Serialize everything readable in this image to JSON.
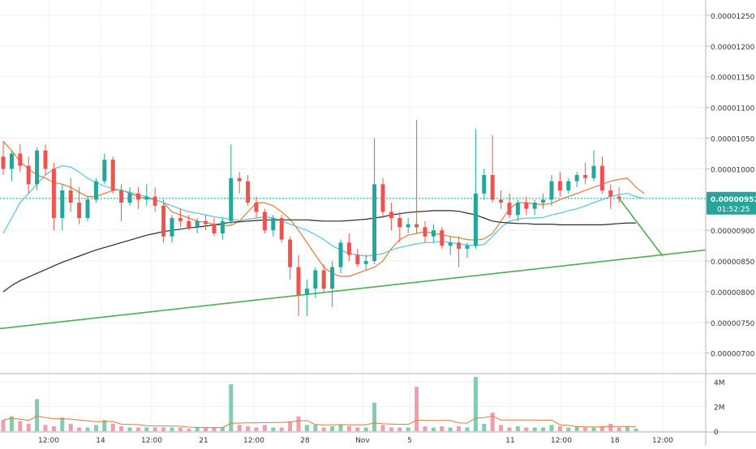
{
  "chart_data": [
    {
      "type": "candlestick",
      "panel": "price",
      "y_range": [
        6.68e-06,
        1.275e-05
      ],
      "y_ticks": [
        "0.00001250",
        "0.00001200",
        "0.00001150",
        "0.00001100",
        "0.00001050",
        "0.00001000",
        "0.00000950",
        "0.00000900",
        "0.00000850",
        "0.00000800",
        "0.00000750",
        "0.00000700"
      ],
      "x_ticks": [
        "12:00",
        "14",
        "12:00",
        "21",
        "12:00",
        "28",
        "Nov",
        "5",
        "11",
        "12:00",
        "18",
        "12:00"
      ],
      "last_price": {
        "value_label": "0.00000952",
        "countdown_label": "01:52:25",
        "value": 9.52e-06
      },
      "candles": [
        {
          "o": 1020,
          "h": 1045,
          "l": 990,
          "c": 1000
        },
        {
          "o": 1000,
          "h": 1030,
          "l": 980,
          "c": 1025
        },
        {
          "o": 1025,
          "h": 1040,
          "l": 995,
          "c": 1005
        },
        {
          "o": 1005,
          "h": 1020,
          "l": 960,
          "c": 975
        },
        {
          "o": 975,
          "h": 1035,
          "l": 965,
          "c": 1030
        },
        {
          "o": 1030,
          "h": 1040,
          "l": 990,
          "c": 1000
        },
        {
          "o": 1000,
          "h": 1010,
          "l": 900,
          "c": 920
        },
        {
          "o": 920,
          "h": 975,
          "l": 900,
          "c": 965
        },
        {
          "o": 965,
          "h": 985,
          "l": 930,
          "c": 945
        },
        {
          "o": 945,
          "h": 970,
          "l": 910,
          "c": 920
        },
        {
          "o": 920,
          "h": 955,
          "l": 915,
          "c": 950
        },
        {
          "o": 950,
          "h": 985,
          "l": 945,
          "c": 980
        },
        {
          "o": 980,
          "h": 1025,
          "l": 975,
          "c": 1015
        },
        {
          "o": 1015,
          "h": 1020,
          "l": 960,
          "c": 965
        },
        {
          "o": 965,
          "h": 975,
          "l": 915,
          "c": 945
        },
        {
          "o": 945,
          "h": 970,
          "l": 940,
          "c": 960
        },
        {
          "o": 960,
          "h": 970,
          "l": 935,
          "c": 950
        },
        {
          "o": 950,
          "h": 975,
          "l": 940,
          "c": 955
        },
        {
          "o": 955,
          "h": 970,
          "l": 930,
          "c": 940
        },
        {
          "o": 940,
          "h": 950,
          "l": 880,
          "c": 890
        },
        {
          "o": 890,
          "h": 925,
          "l": 880,
          "c": 920
        },
        {
          "o": 920,
          "h": 935,
          "l": 905,
          "c": 915
        },
        {
          "o": 915,
          "h": 925,
          "l": 900,
          "c": 905
        },
        {
          "o": 905,
          "h": 920,
          "l": 895,
          "c": 915
        },
        {
          "o": 915,
          "h": 925,
          "l": 900,
          "c": 910
        },
        {
          "o": 910,
          "h": 920,
          "l": 890,
          "c": 895
        },
        {
          "o": 895,
          "h": 920,
          "l": 885,
          "c": 915
        },
        {
          "o": 915,
          "h": 1040,
          "l": 910,
          "c": 985
        },
        {
          "o": 985,
          "h": 995,
          "l": 960,
          "c": 980
        },
        {
          "o": 980,
          "h": 990,
          "l": 940,
          "c": 945
        },
        {
          "o": 945,
          "h": 955,
          "l": 920,
          "c": 930
        },
        {
          "o": 930,
          "h": 935,
          "l": 895,
          "c": 900
        },
        {
          "o": 900,
          "h": 925,
          "l": 890,
          "c": 920
        },
        {
          "o": 920,
          "h": 925,
          "l": 880,
          "c": 885
        },
        {
          "o": 885,
          "h": 890,
          "l": 820,
          "c": 840
        },
        {
          "o": 840,
          "h": 860,
          "l": 760,
          "c": 795
        },
        {
          "o": 795,
          "h": 820,
          "l": 760,
          "c": 805
        },
        {
          "o": 805,
          "h": 840,
          "l": 790,
          "c": 835
        },
        {
          "o": 835,
          "h": 845,
          "l": 800,
          "c": 805
        },
        {
          "o": 805,
          "h": 850,
          "l": 775,
          "c": 840
        },
        {
          "o": 840,
          "h": 885,
          "l": 830,
          "c": 880
        },
        {
          "o": 880,
          "h": 895,
          "l": 850,
          "c": 860
        },
        {
          "o": 860,
          "h": 870,
          "l": 840,
          "c": 845
        },
        {
          "o": 845,
          "h": 860,
          "l": 835,
          "c": 850
        },
        {
          "o": 850,
          "h": 1050,
          "l": 845,
          "c": 975
        },
        {
          "o": 975,
          "h": 985,
          "l": 920,
          "c": 930
        },
        {
          "o": 930,
          "h": 945,
          "l": 900,
          "c": 920
        },
        {
          "o": 920,
          "h": 930,
          "l": 880,
          "c": 905
        },
        {
          "o": 905,
          "h": 920,
          "l": 895,
          "c": 910
        },
        {
          "o": 910,
          "h": 1080,
          "l": 895,
          "c": 905
        },
        {
          "o": 905,
          "h": 915,
          "l": 880,
          "c": 890
        },
        {
          "o": 890,
          "h": 910,
          "l": 880,
          "c": 900
        },
        {
          "o": 900,
          "h": 905,
          "l": 870,
          "c": 875
        },
        {
          "o": 875,
          "h": 890,
          "l": 860,
          "c": 880
        },
        {
          "o": 880,
          "h": 890,
          "l": 840,
          "c": 870
        },
        {
          "o": 870,
          "h": 880,
          "l": 855,
          "c": 875
        },
        {
          "o": 875,
          "h": 1065,
          "l": 870,
          "c": 960
        },
        {
          "o": 960,
          "h": 1000,
          "l": 950,
          "c": 990
        },
        {
          "o": 990,
          "h": 1055,
          "l": 945,
          "c": 950
        },
        {
          "o": 950,
          "h": 965,
          "l": 935,
          "c": 945
        },
        {
          "o": 945,
          "h": 960,
          "l": 920,
          "c": 925
        },
        {
          "o": 925,
          "h": 950,
          "l": 915,
          "c": 945
        },
        {
          "o": 945,
          "h": 955,
          "l": 925,
          "c": 935
        },
        {
          "o": 935,
          "h": 950,
          "l": 925,
          "c": 945
        },
        {
          "o": 945,
          "h": 960,
          "l": 935,
          "c": 950
        },
        {
          "o": 950,
          "h": 990,
          "l": 940,
          "c": 980
        },
        {
          "o": 980,
          "h": 995,
          "l": 955,
          "c": 965
        },
        {
          "o": 965,
          "h": 985,
          "l": 960,
          "c": 980
        },
        {
          "o": 980,
          "h": 995,
          "l": 970,
          "c": 990
        },
        {
          "o": 990,
          "h": 1010,
          "l": 975,
          "c": 985
        },
        {
          "o": 985,
          "h": 1030,
          "l": 980,
          "c": 1005
        },
        {
          "o": 1005,
          "h": 1020,
          "l": 960,
          "c": 965
        },
        {
          "o": 965,
          "h": 975,
          "l": 935,
          "c": 955
        },
        {
          "o": 955,
          "h": 970,
          "l": 945,
          "c": 952
        }
      ],
      "overlay_lines": [
        {
          "color": "#e07b39",
          "points": [
            1045,
            1030,
            1012,
            1000,
            990,
            985,
            978,
            975,
            970,
            962,
            955,
            955,
            960,
            965,
            966,
            960,
            955,
            952,
            950,
            945,
            930,
            925,
            920,
            915,
            913,
            910,
            908,
            908,
            915,
            930,
            945,
            945,
            940,
            930,
            918,
            900,
            880,
            860,
            840,
            830,
            825,
            825,
            830,
            835,
            840,
            850,
            870,
            885,
            892,
            895,
            898,
            895,
            893,
            890,
            888,
            885,
            884,
            886,
            895,
            915,
            935,
            945,
            945,
            943,
            942,
            944,
            950,
            955,
            960,
            965,
            970,
            975,
            980,
            983,
            985,
            970,
            960
          ]
        },
        {
          "color": "#58c4d8",
          "points": [
            895,
            920,
            945,
            960,
            975,
            990,
            1000,
            1005,
            1003,
            995,
            985,
            978,
            972,
            968,
            965,
            962,
            958,
            955,
            950,
            945,
            940,
            935,
            930,
            928,
            925,
            922,
            920,
            918,
            916,
            918,
            920,
            922,
            920,
            915,
            910,
            905,
            900,
            893,
            885,
            875,
            868,
            862,
            860,
            858,
            860,
            862,
            868,
            872,
            875,
            878,
            880,
            880,
            882,
            880,
            878,
            876,
            875,
            877,
            890,
            905,
            915,
            918,
            920,
            920,
            921,
            925,
            928,
            932,
            935,
            940,
            945,
            950,
            955,
            958,
            960,
            955,
            952
          ]
        },
        {
          "color": "#2a2a2a",
          "points": [
            800,
            810,
            818,
            824,
            830,
            836,
            842,
            848,
            853,
            858,
            863,
            868,
            872,
            876,
            880,
            884,
            888,
            892,
            895,
            898,
            900,
            902,
            904,
            905,
            907,
            909,
            911,
            913,
            914,
            915,
            916,
            917,
            917,
            917,
            917,
            917,
            917,
            916,
            915,
            915,
            915,
            916,
            917,
            918,
            920,
            922,
            925,
            927,
            929,
            930,
            931,
            932,
            932,
            932,
            931,
            928,
            925,
            920,
            915,
            913,
            912,
            911,
            911,
            910,
            910,
            910,
            909,
            909,
            909,
            909,
            909,
            909,
            910,
            911,
            912,
            912
          ]
        }
      ],
      "trendline": {
        "from": 740,
        "to": 868,
        "color": "#4caf50"
      },
      "projection": {
        "from": 952,
        "to": 858,
        "color": "#4caf50"
      }
    },
    {
      "type": "bar",
      "panel": "volume",
      "y_ticks": [
        "4M",
        "2M",
        "0"
      ],
      "y_range": [
        0,
        4.6
      ],
      "values": [
        0.9,
        1.2,
        0.8,
        0.6,
        2.6,
        0.5,
        0.4,
        1.1,
        0.6,
        0.3,
        0.3,
        0.5,
        0.9,
        0.6,
        0.4,
        0.3,
        0.3,
        0.3,
        0.3,
        0.3,
        0.3,
        0.3,
        0.2,
        0.3,
        0.3,
        0.3,
        0.3,
        3.8,
        0.5,
        0.4,
        0.3,
        0.5,
        0.3,
        0.3,
        0.8,
        1.2,
        0.5,
        0.5,
        0.3,
        0.4,
        0.5,
        0.4,
        0.3,
        0.3,
        2.3,
        0.5,
        0.3,
        0.3,
        0.3,
        3.6,
        0.4,
        0.3,
        0.4,
        0.3,
        0.4,
        0.3,
        4.4,
        0.6,
        1.5,
        0.5,
        0.3,
        0.4,
        0.3,
        0.3,
        0.3,
        0.5,
        0.4,
        0.3,
        0.4,
        0.3,
        0.3,
        0.4,
        0.6,
        0.3,
        0.4,
        0.2
      ],
      "ma_line_color": "#e07b39",
      "up_color": "#6bc4a0",
      "down_color": "#f08ca0"
    }
  ],
  "colors": {
    "up": "#26a69a",
    "down": "#ef5350",
    "price_label_bg": "#26a69a",
    "grid": "#eef0f3"
  }
}
